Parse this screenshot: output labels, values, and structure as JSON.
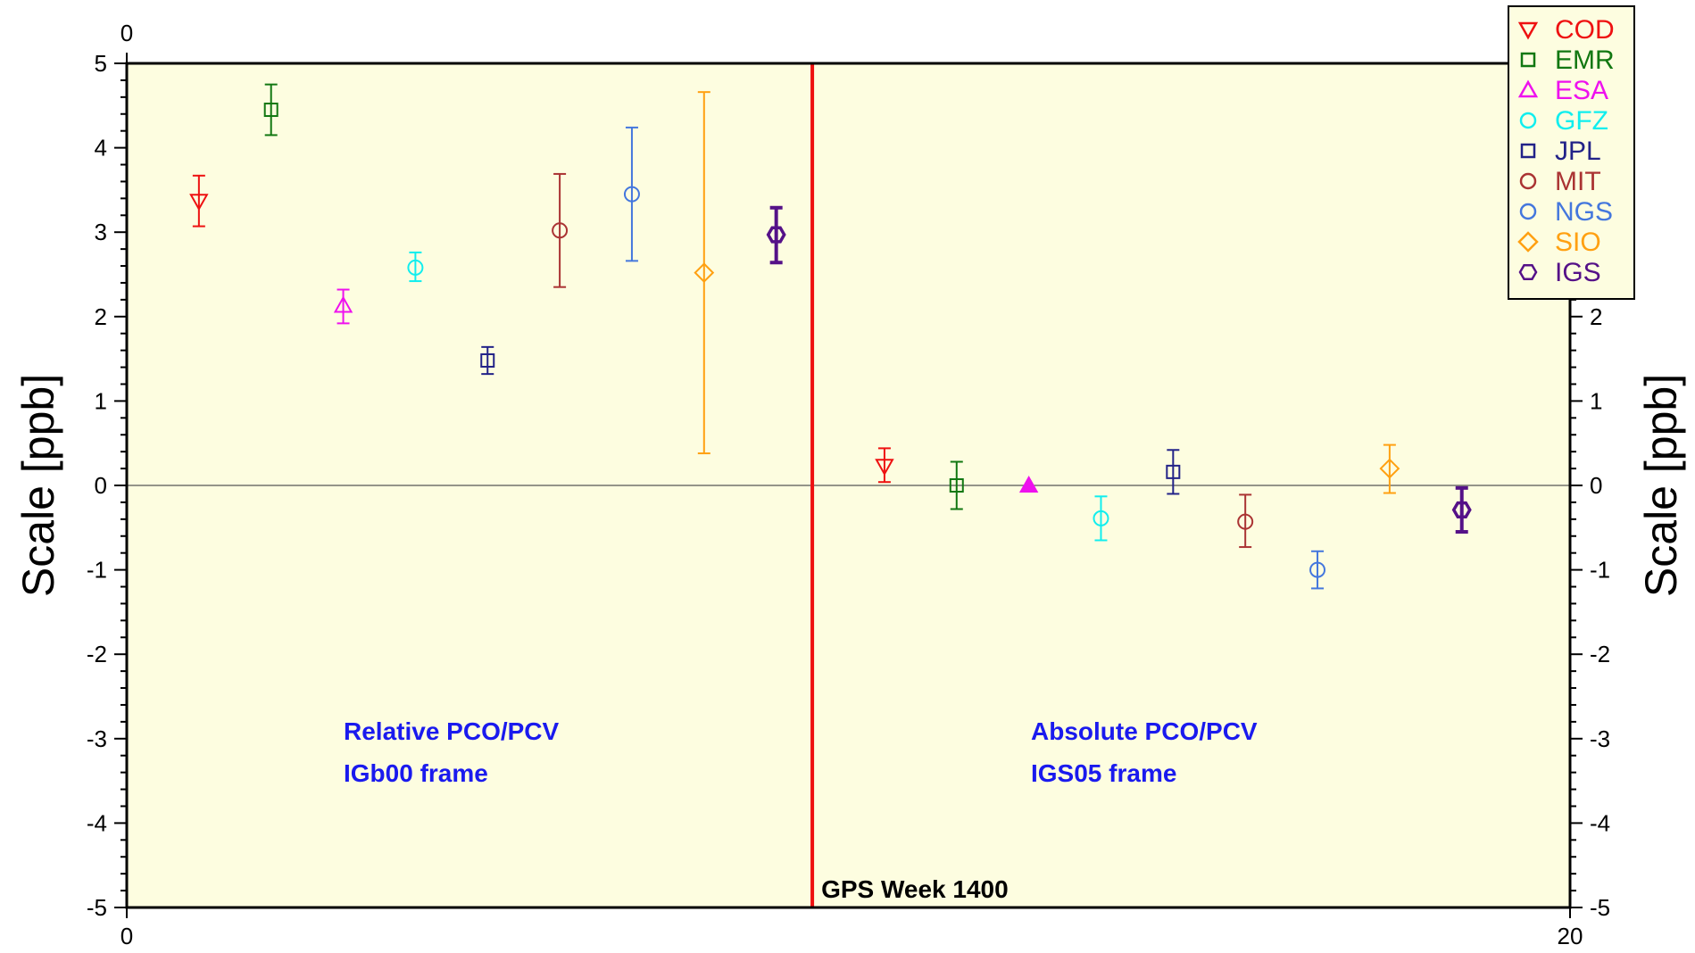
{
  "chart_data": {
    "type": "scatter",
    "title": "",
    "ylabel": "Scale [ppb]",
    "ylabel_right": "Scale [ppb]",
    "xlim": [
      0,
      20
    ],
    "ylim": [
      -5,
      5
    ],
    "x_ticks": [
      "0",
      "20"
    ],
    "x_top_tick": "0",
    "y_ticks": [
      "5",
      "4",
      "3",
      "2",
      "1",
      "0",
      "-1",
      "-2",
      "-3",
      "-4",
      "-5"
    ],
    "y_ticks_right": [
      "2",
      "1",
      "0",
      "-1",
      "-2",
      "-3",
      "-4",
      "-5"
    ],
    "grid": false,
    "zero_line": true,
    "legend_position": "top-right",
    "vline": {
      "x": 9.5,
      "label": "GPS Week 1400",
      "color": "#ee1111"
    },
    "annotations": [
      {
        "id": "left_line1",
        "text": "Relative PCO/PCV",
        "x": 3.0,
        "y": -2.87
      },
      {
        "id": "left_line2",
        "text": "IGb00 frame",
        "x": 3.0,
        "y": -3.37
      },
      {
        "id": "right_line1",
        "text": "Absolute PCO/PCV",
        "x": 12.5,
        "y": -2.87
      },
      {
        "id": "right_line2",
        "text": "IGS05 frame",
        "x": 12.5,
        "y": -3.37
      }
    ],
    "series": [
      {
        "name": "COD",
        "color": "#ee1111",
        "marker": "triangle-down",
        "points": [
          {
            "x": 1,
            "y": 3.37,
            "lo": 3.07,
            "hi": 3.67
          },
          {
            "x": 10.5,
            "y": 0.23,
            "lo": 0.04,
            "hi": 0.44
          }
        ]
      },
      {
        "name": "EMR",
        "color": "#117711",
        "marker": "square",
        "points": [
          {
            "x": 2,
            "y": 4.45,
            "lo": 4.15,
            "hi": 4.75
          },
          {
            "x": 11.5,
            "y": 0.0,
            "lo": -0.28,
            "hi": 0.28
          }
        ]
      },
      {
        "name": "ESA",
        "color": "#ee11ee",
        "marker": "triangle-up",
        "filled_second": true,
        "points": [
          {
            "x": 3,
            "y": 2.13,
            "lo": 1.92,
            "hi": 2.32
          },
          {
            "x": 12.5,
            "y": 0.0,
            "lo": 0.0,
            "hi": 0.0
          }
        ]
      },
      {
        "name": "GFZ",
        "color": "#11eeee",
        "marker": "circle",
        "points": [
          {
            "x": 4,
            "y": 2.58,
            "lo": 2.42,
            "hi": 2.76
          },
          {
            "x": 13.5,
            "y": -0.39,
            "lo": -0.65,
            "hi": -0.13
          }
        ]
      },
      {
        "name": "JPL",
        "color": "#222288",
        "marker": "square",
        "points": [
          {
            "x": 5,
            "y": 1.48,
            "lo": 1.32,
            "hi": 1.64
          },
          {
            "x": 14.5,
            "y": 0.16,
            "lo": -0.1,
            "hi": 0.42
          }
        ]
      },
      {
        "name": "MIT",
        "color": "#aa3333",
        "marker": "circle",
        "points": [
          {
            "x": 6,
            "y": 3.02,
            "lo": 2.35,
            "hi": 3.69
          },
          {
            "x": 15.5,
            "y": -0.43,
            "lo": -0.73,
            "hi": -0.11
          }
        ]
      },
      {
        "name": "NGS",
        "color": "#4477dd",
        "marker": "circle",
        "points": [
          {
            "x": 7,
            "y": 3.45,
            "lo": 2.66,
            "hi": 4.24
          },
          {
            "x": 16.5,
            "y": -1.0,
            "lo": -1.22,
            "hi": -0.78
          }
        ]
      },
      {
        "name": "SIO",
        "color": "#ffa011",
        "marker": "diamond",
        "points": [
          {
            "x": 8,
            "y": 2.52,
            "lo": 0.38,
            "hi": 4.66
          },
          {
            "x": 17.5,
            "y": 0.2,
            "lo": -0.09,
            "hi": 0.48
          }
        ]
      },
      {
        "name": "IGS",
        "color": "#551188",
        "marker": "hexagon",
        "thick": true,
        "points": [
          {
            "x": 9,
            "y": 2.97,
            "lo": 2.64,
            "hi": 3.29
          },
          {
            "x": 18.5,
            "y": -0.29,
            "lo": -0.55,
            "hi": -0.03
          }
        ]
      }
    ]
  }
}
